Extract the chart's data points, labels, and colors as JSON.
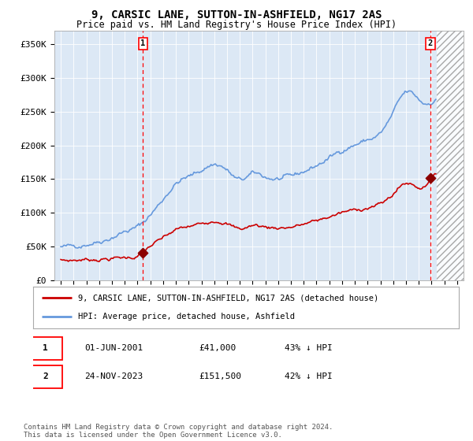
{
  "title": "9, CARSIC LANE, SUTTON-IN-ASHFIELD, NG17 2AS",
  "subtitle": "Price paid vs. HM Land Registry's House Price Index (HPI)",
  "background_color": "#ffffff",
  "plot_bg_color": "#dce8f5",
  "ylim": [
    0,
    370000
  ],
  "yticks": [
    0,
    50000,
    100000,
    150000,
    200000,
    250000,
    300000,
    350000
  ],
  "ytick_labels": [
    "£0",
    "£50K",
    "£100K",
    "£150K",
    "£200K",
    "£250K",
    "£300K",
    "£350K"
  ],
  "xlim_start": 1994.5,
  "xlim_end": 2026.5,
  "marker1_x": 2001.42,
  "marker1_y": 41000,
  "marker2_x": 2023.9,
  "marker2_y": 151500,
  "hatch_start": 2024.42,
  "legend_entries": [
    {
      "label": "9, CARSIC LANE, SUTTON-IN-ASHFIELD, NG17 2AS (detached house)",
      "color": "#cc0000",
      "lw": 1.2
    },
    {
      "label": "HPI: Average price, detached house, Ashfield",
      "color": "#6699dd",
      "lw": 1.2
    }
  ],
  "transactions": [
    {
      "num": "1",
      "date": "01-JUN-2001",
      "price": "£41,000",
      "pct": "43% ↓ HPI"
    },
    {
      "num": "2",
      "date": "24-NOV-2023",
      "price": "£151,500",
      "pct": "42% ↓ HPI"
    }
  ],
  "footnote": "Contains HM Land Registry data © Crown copyright and database right 2024.\nThis data is licensed under the Open Government Licence v3.0."
}
